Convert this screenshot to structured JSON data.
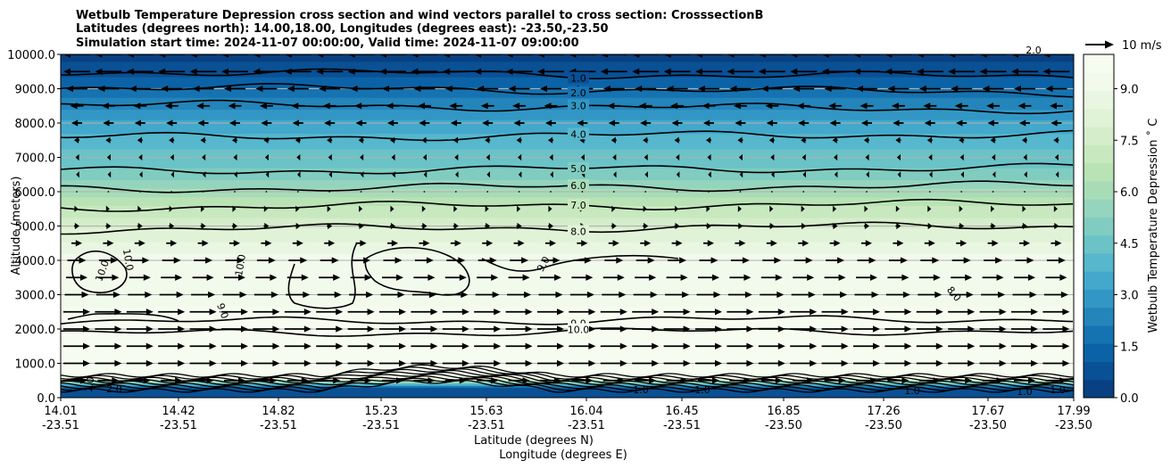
{
  "chart_data": {
    "type": "contour",
    "title_lines": [
      "Wetbulb Temperature Depression cross section and wind vectors parallel to cross section: CrosssectionB",
      "Latitudes (degrees north): 14.00,18.00, Longitudes (degrees east): -23.50,-23.50",
      "Simulation start time: 2024-11-07 00:00:00, Valid time: 2024-11-07 09:00:00"
    ],
    "ylabel": "Altitude (meters)",
    "xlabel_lat": "Latitude (degrees N)",
    "xlabel_lon": "Longitude (degrees E)",
    "ylim": [
      0,
      10000
    ],
    "yticks": [
      "0.0",
      "1000.0",
      "2000.0",
      "3000.0",
      "4000.0",
      "5000.0",
      "6000.0",
      "7000.0",
      "8000.0",
      "9000.0",
      "10000.0"
    ],
    "xticks": [
      {
        "lat": "14.01",
        "lon": "-23.51"
      },
      {
        "lat": "14.42",
        "lon": "-23.51"
      },
      {
        "lat": "14.82",
        "lon": "-23.51"
      },
      {
        "lat": "15.23",
        "lon": "-23.51"
      },
      {
        "lat": "15.63",
        "lon": "-23.51"
      },
      {
        "lat": "16.04",
        "lon": "-23.51"
      },
      {
        "lat": "16.45",
        "lon": "-23.51"
      },
      {
        "lat": "16.85",
        "lon": "-23.50"
      },
      {
        "lat": "17.26",
        "lon": "-23.50"
      },
      {
        "lat": "17.67",
        "lon": "-23.50"
      },
      {
        "lat": "17.99",
        "lon": "-23.50"
      }
    ],
    "colorbar": {
      "label": "Wetbulb Temperature Depression ˚ C",
      "range": [
        0,
        10
      ],
      "ticks": [
        "0.0",
        "1.5",
        "3.0",
        "4.5",
        "6.0",
        "7.5",
        "9.0"
      ],
      "colors": [
        "#084081",
        "#0a5095",
        "#0c62a7",
        "#1673b1",
        "#2485bb",
        "#3397c5",
        "#43a8cc",
        "#56b7cd",
        "#6bc3c7",
        "#80ccc1",
        "#95d4bd",
        "#a8dcb7",
        "#b9e3b5",
        "#c8e8bf",
        "#d5edca",
        "#e0f3d7",
        "#e9f6e2",
        "#f2faec",
        "#f7fcf0"
      ]
    },
    "wetbulb_depression_profile": [
      {
        "alt": 0,
        "value": 0.8
      },
      {
        "alt": 300,
        "value": 1.0
      },
      {
        "alt": 600,
        "value": 9.8
      },
      {
        "alt": 1000,
        "value": 10.0
      },
      {
        "alt": 2000,
        "value": 9.8
      },
      {
        "alt": 3000,
        "value": 9.3
      },
      {
        "alt": 4000,
        "value": 9.2
      },
      {
        "alt": 5000,
        "value": 7.8
      },
      {
        "alt": 5500,
        "value": 7.0
      },
      {
        "alt": 6000,
        "value": 6.0
      },
      {
        "alt": 6500,
        "value": 5.0
      },
      {
        "alt": 7000,
        "value": 4.4
      },
      {
        "alt": 7500,
        "value": 4.0
      },
      {
        "alt": 8200,
        "value": 3.0
      },
      {
        "alt": 8800,
        "value": 2.0
      },
      {
        "alt": 9400,
        "value": 1.0
      },
      {
        "alt": 10000,
        "value": 0.3
      }
    ],
    "contour_levels": [
      {
        "value": 1.0,
        "alt": 9500,
        "label": "1.0"
      },
      {
        "value": 2.0,
        "alt": 9050,
        "label": "2.0"
      },
      {
        "value": 3.0,
        "alt": 8550,
        "label": "3.0"
      },
      {
        "value": 4.0,
        "alt": 7580,
        "label": "4.0"
      },
      {
        "value": 5.0,
        "alt": 6600,
        "label": "5.0"
      },
      {
        "value": 6.0,
        "alt": 6080,
        "label": "6.0"
      },
      {
        "value": 7.0,
        "alt": 5550,
        "label": "7.0"
      },
      {
        "value": 8.0,
        "alt": 4900,
        "label": "8.0"
      },
      {
        "value": 9.0,
        "alt": 2200,
        "label": "9.0"
      },
      {
        "value": 10.0,
        "alt": 1860,
        "label": "10.0"
      }
    ],
    "inline_labels": [
      "10.0",
      "10.0",
      "10.0",
      "9.0",
      "9.0",
      "8.0",
      "1.0",
      "2.0",
      "1.0",
      "1.0",
      "1.0",
      "1.0",
      "1.0",
      "2.0"
    ],
    "wind_profile": [
      {
        "alt": 10000,
        "u": -10
      },
      {
        "alt": 9500,
        "u": -10
      },
      {
        "alt": 9000,
        "u": -8
      },
      {
        "alt": 8500,
        "u": -5
      },
      {
        "alt": 8000,
        "u": -4
      },
      {
        "alt": 7500,
        "u": -2
      },
      {
        "alt": 7000,
        "u": -1
      },
      {
        "alt": 6500,
        "u": -0.5
      },
      {
        "alt": 6000,
        "u": 0
      },
      {
        "alt": 5500,
        "u": 1
      },
      {
        "alt": 5000,
        "u": 2
      },
      {
        "alt": 4500,
        "u": 4
      },
      {
        "alt": 4000,
        "u": 7
      },
      {
        "alt": 3500,
        "u": 8
      },
      {
        "alt": 3000,
        "u": 9
      },
      {
        "alt": 2500,
        "u": 10
      },
      {
        "alt": 2000,
        "u": 10
      },
      {
        "alt": 1500,
        "u": 10
      },
      {
        "alt": 1000,
        "u": 10
      },
      {
        "alt": 500,
        "u": 8
      }
    ],
    "quiver_key": {
      "label": "10 m/s",
      "value": 10
    }
  }
}
